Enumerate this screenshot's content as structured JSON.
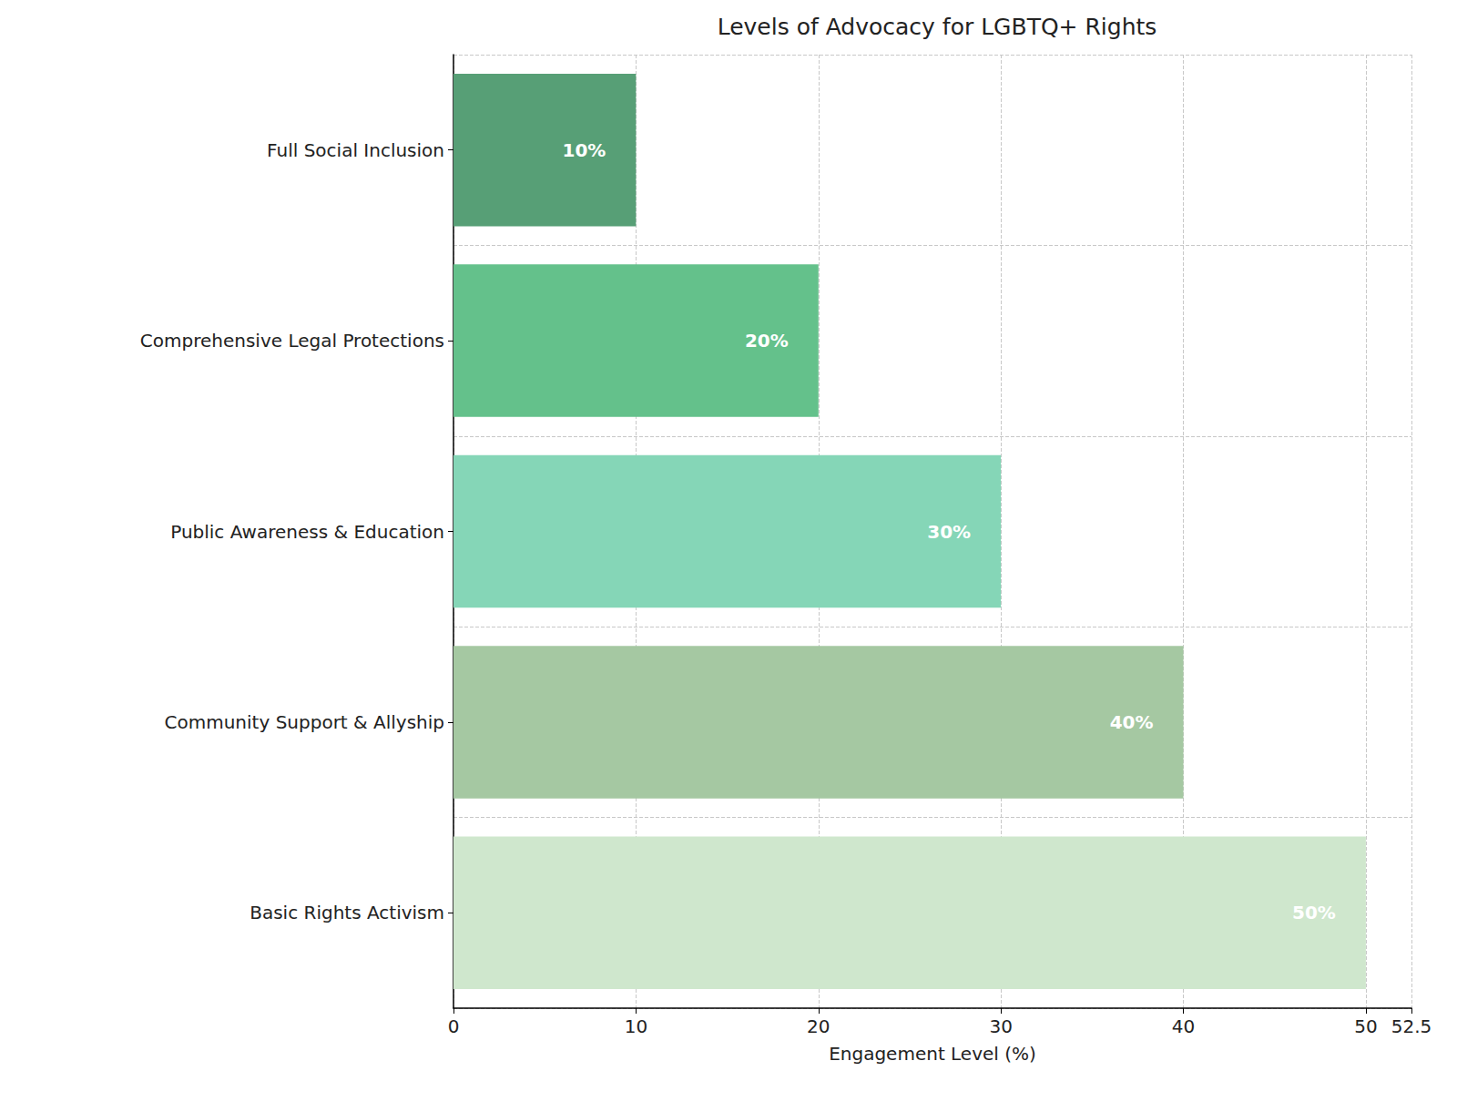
{
  "chart_data": {
    "type": "bar",
    "orientation": "horizontal",
    "title": "Levels of Advocacy for LGBTQ+ Rights",
    "x_label": "Engagement Level (%)",
    "categories": [
      "Basic Rights Activism",
      "Community Support & Allyship",
      "Public Awareness & Education",
      "Comprehensive Legal Protections",
      "Full Social Inclusion"
    ],
    "values": [
      50,
      40,
      30,
      20,
      10
    ],
    "value_labels": [
      "50%",
      "40%",
      "30%",
      "20%",
      "10%"
    ],
    "colors": [
      "#cfe7cd",
      "#a5c8a2",
      "#85d6b7",
      "#64c18b",
      "#579f76"
    ],
    "xlim": [
      0,
      52.5
    ],
    "xticks": [
      0,
      10,
      20,
      30,
      40,
      50
    ],
    "grid": true,
    "data_labels": true
  }
}
